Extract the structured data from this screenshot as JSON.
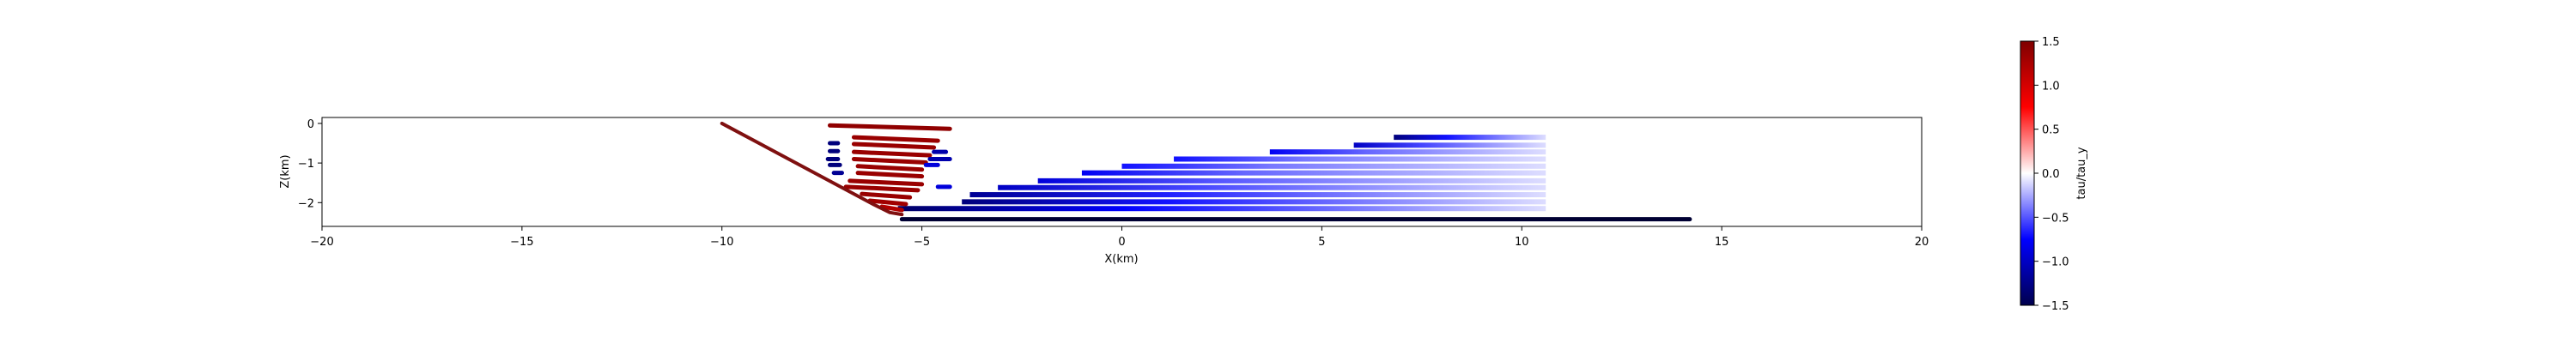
{
  "chart_data": [
    {
      "type": "scatter",
      "title": "",
      "xlabel": "X(km)",
      "ylabel": "Z(km)",
      "xlim": [
        -20,
        20
      ],
      "ylim": [
        -2.6,
        0.15
      ],
      "xticks": [
        -20,
        -15,
        -10,
        -5,
        0,
        5,
        10,
        15,
        20
      ],
      "xtick_labels": [
        "−20",
        "−15",
        "−10",
        "−5",
        "0",
        "5",
        "10",
        "15",
        "20"
      ],
      "yticks": [
        0,
        -1,
        -2
      ],
      "ytick_labels": [
        "0",
        "−1",
        "−2"
      ],
      "grid": false,
      "colormap": "seismic",
      "color_field": "tau/tau_y",
      "fault_trace": {
        "color": "#7f1010",
        "x": [
          -10,
          -6.2,
          -5.8,
          -5.5
        ],
        "z": [
          0,
          -2.05,
          -2.25,
          -2.3
        ]
      },
      "base_line": {
        "color": "#000033",
        "x": [
          -5.5,
          14.2
        ],
        "z": [
          -2.42,
          -2.42
        ]
      },
      "red_rows": [
        {
          "z": -0.05,
          "x_start": -7.3,
          "x_end": -4.3,
          "value": 1.4
        },
        {
          "z": -0.35,
          "x_start": -6.7,
          "x_end": -4.6,
          "value": 1.35
        },
        {
          "z": -0.52,
          "x_start": -6.7,
          "x_end": -4.7,
          "value": 1.35
        },
        {
          "z": -0.72,
          "x_start": -6.7,
          "x_end": -4.8,
          "value": 1.35
        },
        {
          "z": -0.9,
          "x_start": -6.7,
          "x_end": -4.9,
          "value": 1.35
        },
        {
          "z": -1.08,
          "x_start": -6.6,
          "x_end": -5.0,
          "value": 1.35
        },
        {
          "z": -1.25,
          "x_start": -6.6,
          "x_end": -5.0,
          "value": 1.35
        },
        {
          "z": -1.45,
          "x_start": -6.8,
          "x_end": -5.0,
          "value": 1.35
        },
        {
          "z": -1.6,
          "x_start": -6.9,
          "x_end": -5.1,
          "value": 1.35
        },
        {
          "z": -1.78,
          "x_start": -6.5,
          "x_end": -5.3,
          "value": 1.35
        },
        {
          "z": -1.95,
          "x_start": -6.3,
          "x_end": -5.4,
          "value": 1.3
        },
        {
          "z": -2.1,
          "x_start": -6.0,
          "x_end": -5.5,
          "value": 1.2
        }
      ],
      "blue_edge_segments": [
        {
          "z": -0.5,
          "x_start": -7.3,
          "x_end": -7.1,
          "value": -1.3
        },
        {
          "z": -0.7,
          "x_start": -7.3,
          "x_end": -7.1,
          "value": -1.3
        },
        {
          "z": -0.9,
          "x_start": -7.35,
          "x_end": -7.1,
          "value": -1.3
        },
        {
          "z": -1.05,
          "x_start": -7.3,
          "x_end": -7.05,
          "value": -1.3
        },
        {
          "z": -1.25,
          "x_start": -7.2,
          "x_end": -7.0,
          "value": -1.2
        },
        {
          "z": -0.72,
          "x_start": -4.7,
          "x_end": -4.4,
          "value": -1.1
        },
        {
          "z": -0.9,
          "x_start": -4.8,
          "x_end": -4.3,
          "value": -1.1
        },
        {
          "z": -1.05,
          "x_start": -4.9,
          "x_end": -4.6,
          "value": -0.9
        },
        {
          "z": -1.6,
          "x_start": -4.6,
          "x_end": -4.3,
          "value": -0.9
        }
      ],
      "blue_rows": [
        {
          "z": -0.35,
          "x_start": 6.8,
          "x_end": 10.6,
          "value_start": -1.3,
          "value_end": -0.1
        },
        {
          "z": -0.55,
          "x_start": 5.8,
          "x_end": 10.6,
          "value_start": -1.0,
          "value_end": -0.1
        },
        {
          "z": -0.72,
          "x_start": 3.7,
          "x_end": 10.6,
          "value_start": -0.8,
          "value_end": -0.1
        },
        {
          "z": -0.9,
          "x_start": 1.3,
          "x_end": 10.6,
          "value_start": -0.7,
          "value_end": -0.1
        },
        {
          "z": -1.08,
          "x_start": 0.0,
          "x_end": 10.6,
          "value_start": -0.7,
          "value_end": -0.1
        },
        {
          "z": -1.25,
          "x_start": -1.0,
          "x_end": 10.6,
          "value_start": -0.8,
          "value_end": -0.1
        },
        {
          "z": -1.45,
          "x_start": -2.1,
          "x_end": 10.6,
          "value_start": -0.9,
          "value_end": -0.1
        },
        {
          "z": -1.62,
          "x_start": -3.1,
          "x_end": 10.6,
          "value_start": -1.0,
          "value_end": -0.1
        },
        {
          "z": -1.8,
          "x_start": -3.8,
          "x_end": 10.6,
          "value_start": -1.2,
          "value_end": -0.1
        },
        {
          "z": -1.98,
          "x_start": -4.0,
          "x_end": 10.6,
          "value_start": -1.3,
          "value_end": -0.1
        },
        {
          "z": -2.15,
          "x_start": -5.6,
          "x_end": 10.6,
          "value_start": -1.4,
          "value_end": -0.1
        }
      ]
    },
    {
      "type": "colorbar",
      "label": "tau/tau_y",
      "range": [
        -1.5,
        1.5
      ],
      "ticks": [
        1.5,
        1.0,
        0.5,
        0.0,
        -0.5,
        -1.0,
        -1.5
      ],
      "tick_labels": [
        "1.5",
        "1.0",
        "0.5",
        "0.0",
        "−0.5",
        "−1.0",
        "−1.5"
      ],
      "colormap": "seismic"
    }
  ]
}
